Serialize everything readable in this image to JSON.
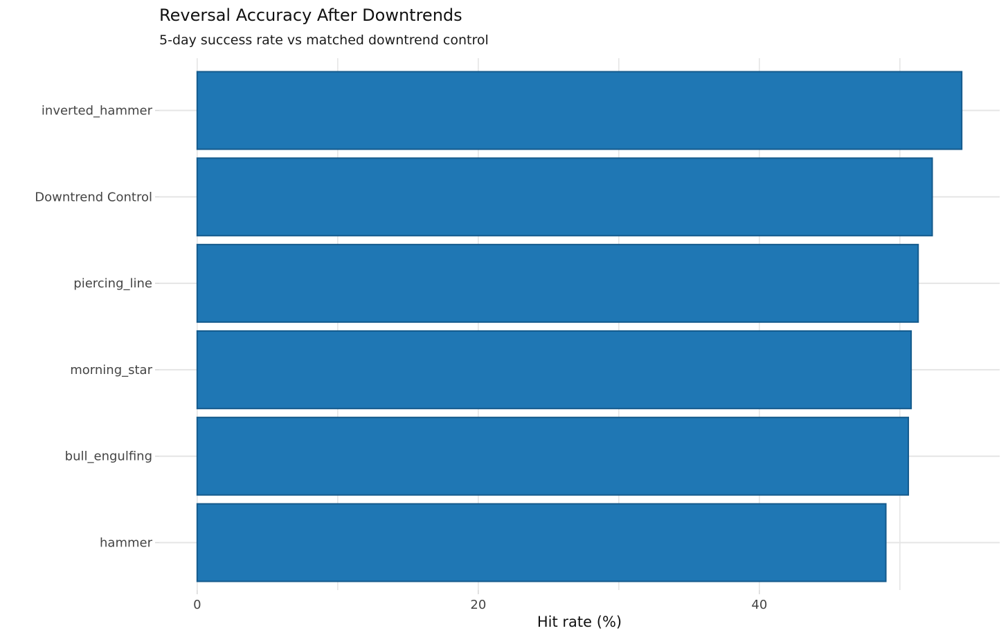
{
  "chart_data": {
    "type": "bar",
    "orientation": "horizontal",
    "title": "Reversal Accuracy After Downtrends",
    "subtitle": "5-day success rate vs matched downtrend control",
    "xlabel": "Hit rate (%)",
    "ylabel": "",
    "categories": [
      "inverted_hammer",
      "Downtrend Control",
      "piercing_line",
      "morning_star",
      "bull_engulfing",
      "hammer"
    ],
    "values": [
      54.4,
      52.3,
      51.3,
      50.8,
      50.6,
      49.0
    ],
    "xlim": [
      -2.7,
      57.1
    ],
    "xticks": [
      0,
      20,
      40
    ],
    "grid_interval": 10,
    "grid": true,
    "legend": "none",
    "colors": {
      "bar_fill": "#1f77b4",
      "bar_edge": "#145a8c",
      "grid": "#e5e5e5",
      "tick_mark": "#d9d9d9",
      "tick_label": "#444444",
      "category_label": "#444444",
      "title_text": "#111111"
    }
  }
}
